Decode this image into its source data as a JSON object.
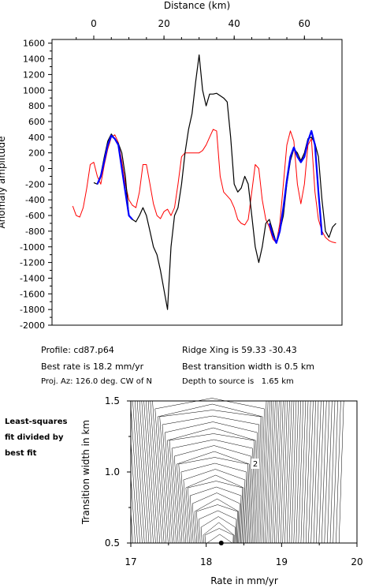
{
  "top_chart": {
    "x_axis_title": "Distance (km)",
    "y_axis_title": "Anomaly amplitude",
    "x_ticks": [
      0,
      20,
      40,
      60
    ],
    "y_ticks": [
      -2000,
      -1800,
      -1600,
      -1400,
      -1200,
      -1000,
      -800,
      -600,
      -400,
      -200,
      0,
      200,
      400,
      600,
      800,
      1000,
      1200,
      1400,
      1600
    ],
    "colors": {
      "observed": "#000000",
      "model": "#ff0000",
      "fit": "#0000ff"
    }
  },
  "info": {
    "profile": "Profile: cd87.p64",
    "ridge_xing": "Ridge Xing is 59.33 -30.43",
    "best_rate": "Best rate is 18.2 mm/yr",
    "best_width": "Best transition width is 0.5 km",
    "proj_az": "Proj. Az: 126.0 deg. CW of N",
    "depth": "Depth to source is   1.65 km"
  },
  "side_label": [
    "Least-squares",
    "fit divided by",
    "best fit"
  ],
  "bottom_chart": {
    "x_axis_title": "Rate in mm/yr",
    "y_axis_title": "Transition width in km",
    "x_ticks": [
      "17",
      "18",
      "19",
      "20"
    ],
    "y_ticks": [
      "0.5",
      "1.0",
      "1.5"
    ],
    "contour_labels": [
      "2"
    ]
  },
  "chart_data": [
    {
      "type": "line",
      "xlim": [
        -6,
        70
      ],
      "ylim": [
        -2000,
        1600
      ],
      "series": [
        {
          "key": "observed",
          "x": [
            0,
            1,
            2,
            3,
            4,
            5,
            6,
            7,
            8,
            9,
            10,
            11,
            12,
            13,
            14,
            15,
            16,
            17,
            18,
            19,
            20,
            21,
            22,
            23,
            24,
            25,
            26,
            27,
            28,
            29,
            30,
            31,
            32,
            33,
            34,
            35,
            36,
            37,
            38,
            39,
            40,
            41,
            42,
            43,
            44,
            45,
            46,
            47,
            48,
            49,
            50,
            51,
            52,
            53,
            54,
            55,
            56,
            57,
            58,
            59,
            60,
            61,
            62,
            63,
            64,
            65,
            66,
            67,
            68,
            69
          ],
          "y": [
            -180,
            -200,
            -80,
            150,
            350,
            440,
            380,
            320,
            200,
            -100,
            -600,
            -650,
            -680,
            -600,
            -500,
            -600,
            -800,
            -1000,
            -1100,
            -1300,
            -1550,
            -1800,
            -1000,
            -600,
            -500,
            -200,
            200,
            500,
            700,
            1100,
            1450,
            1000,
            800,
            950,
            950,
            960,
            930,
            900,
            850,
            400,
            -200,
            -300,
            -250,
            -100,
            -200,
            -600,
            -1000,
            -1200,
            -1000,
            -700,
            -650,
            -800,
            -950,
            -800,
            -600,
            -200,
            100,
            250,
            200,
            100,
            200,
            380,
            400,
            320,
            150,
            -400,
            -800,
            -880,
            -750,
            -700
          ]
        },
        {
          "key": "model",
          "x": [
            -6,
            -5,
            -4,
            -3,
            -2,
            -1,
            0,
            1,
            2,
            3,
            4,
            5,
            6,
            7,
            8,
            9,
            10,
            11,
            12,
            13,
            14,
            15,
            16,
            17,
            18,
            19,
            20,
            21,
            22,
            23,
            24,
            25,
            26,
            27,
            28,
            29,
            30,
            31,
            32,
            33,
            34,
            35,
            36,
            37,
            38,
            39,
            40,
            41,
            42,
            43,
            44,
            45,
            46,
            47,
            48,
            49,
            50,
            51,
            52,
            53,
            54,
            55,
            56,
            57,
            58,
            59,
            60,
            61,
            62,
            63,
            64,
            65,
            66,
            67,
            68,
            69
          ],
          "y": [
            -480,
            -600,
            -620,
            -500,
            -250,
            50,
            80,
            -100,
            -200,
            50,
            250,
            400,
            430,
            330,
            100,
            -200,
            -400,
            -470,
            -500,
            -300,
            50,
            50,
            -200,
            -450,
            -600,
            -640,
            -550,
            -520,
            -600,
            -500,
            -200,
            150,
            200,
            200,
            200,
            200,
            200,
            230,
            300,
            400,
            500,
            480,
            -100,
            -300,
            -350,
            -400,
            -500,
            -650,
            -700,
            -720,
            -650,
            -300,
            50,
            0,
            -400,
            -650,
            -750,
            -900,
            -950,
            -700,
            -200,
            300,
            480,
            350,
            -200,
            -450,
            -200,
            300,
            380,
            -300,
            -650,
            -800,
            -880,
            -920,
            -940,
            -950
          ]
        },
        {
          "key": "fit",
          "x": [
            1,
            2,
            3,
            4,
            5,
            6,
            7,
            8,
            9,
            10,
            11,
            50,
            51,
            52,
            53,
            54,
            55,
            56,
            57,
            58,
            59,
            60,
            61,
            62,
            63,
            64,
            65
          ],
          "y": [
            -200,
            -100,
            100,
            300,
            420,
            380,
            300,
            0,
            -300,
            -600,
            -650,
            -700,
            -850,
            -950,
            -800,
            -500,
            -150,
            150,
            270,
            150,
            80,
            150,
            350,
            480,
            300,
            -300,
            -850
          ]
        }
      ]
    },
    {
      "type": "contour",
      "xlim": [
        17,
        20
      ],
      "ylim": [
        0.5,
        1.5
      ],
      "best_fit": {
        "rate": 18.2,
        "width": 0.5
      }
    }
  ]
}
